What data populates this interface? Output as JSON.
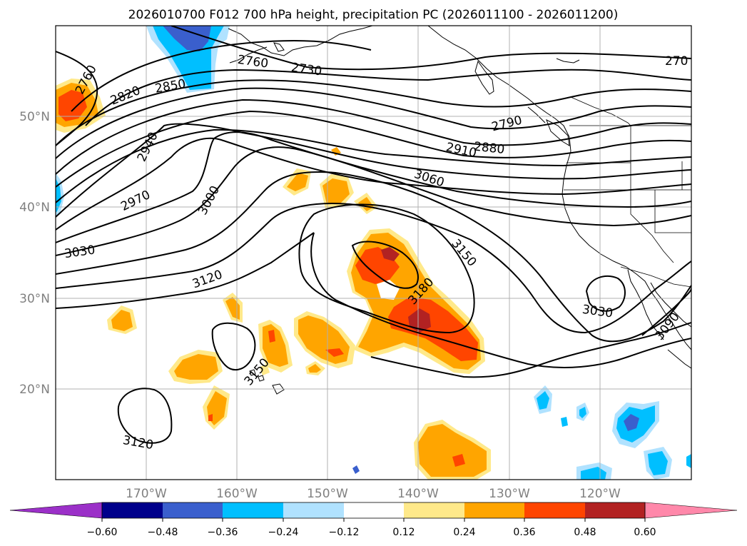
{
  "title": "2026010700 F012 700 hPa height, precipitation PC (2026011100 - 2026011200)",
  "map": {
    "lat_labels": [
      "50°N",
      "40°N",
      "30°N",
      "20°N"
    ],
    "lon_labels": [
      "170°W",
      "160°W",
      "150°W",
      "140°W",
      "130°W",
      "120°W"
    ],
    "grid": true,
    "extent": {
      "lon": [
        -180,
        -110
      ],
      "lat": [
        10,
        60
      ]
    }
  },
  "height_contours": {
    "labels": [
      "2760",
      "2820",
      "2850",
      "2760",
      "2730",
      "270",
      "2790",
      "2910",
      "2880",
      "3060",
      "2940",
      "2970",
      "3000",
      "3030",
      "3120",
      "3150",
      "3180",
      "3150",
      "3030",
      "3090",
      "3120"
    ],
    "color": "#000000"
  },
  "precip_colors": {
    "neg_060": "#9b30c8",
    "neg_048": "#00008b",
    "neg_036": "#3a5fcd",
    "neg_024": "#00bfff",
    "neg_012": "#b0e2ff",
    "pos_012": "#ffe98a",
    "pos_024": "#ffa500",
    "pos_036": "#ff4500",
    "pos_048": "#b22222",
    "pos_060": "#ff88aa"
  },
  "colorbar": {
    "ticks": [
      "−0.60",
      "−0.48",
      "−0.36",
      "−0.24",
      "−0.12",
      "0.12",
      "0.24",
      "0.36",
      "0.48",
      "0.60"
    ],
    "colors": [
      "#9b30c8",
      "#00008b",
      "#3a5fcd",
      "#00bfff",
      "#b0e2ff",
      "#ffffff",
      "#ffe98a",
      "#ffa500",
      "#ff4500",
      "#b22222",
      "#ff88aa"
    ]
  }
}
